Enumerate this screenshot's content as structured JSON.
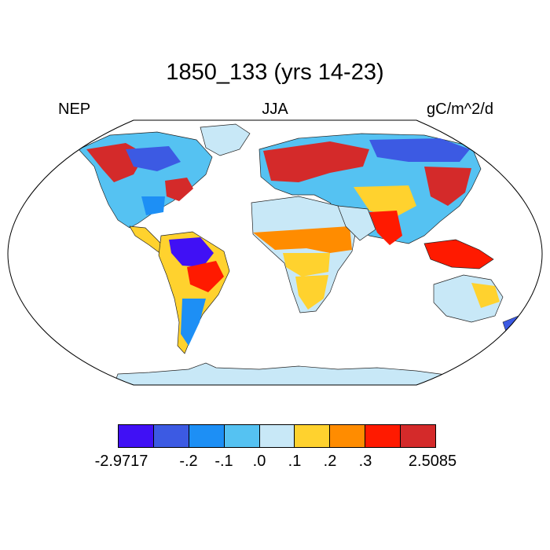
{
  "title": "1850_133 (yrs 14-23)",
  "left_label": "NEP",
  "center_label": "JJA",
  "right_label": "gC/m^2/d",
  "colorbar": {
    "colors": [
      "#4010f5",
      "#3c5ae3",
      "#1d8ff5",
      "#55c2f2",
      "#c8e8f7",
      "#ffd22e",
      "#ff8c00",
      "#ff1a00",
      "#d42a2a"
    ],
    "labels": [
      "-2.9717",
      "-.2",
      "-.1",
      ".0",
      ".1",
      ".2",
      ".3",
      "2.5085"
    ]
  }
}
